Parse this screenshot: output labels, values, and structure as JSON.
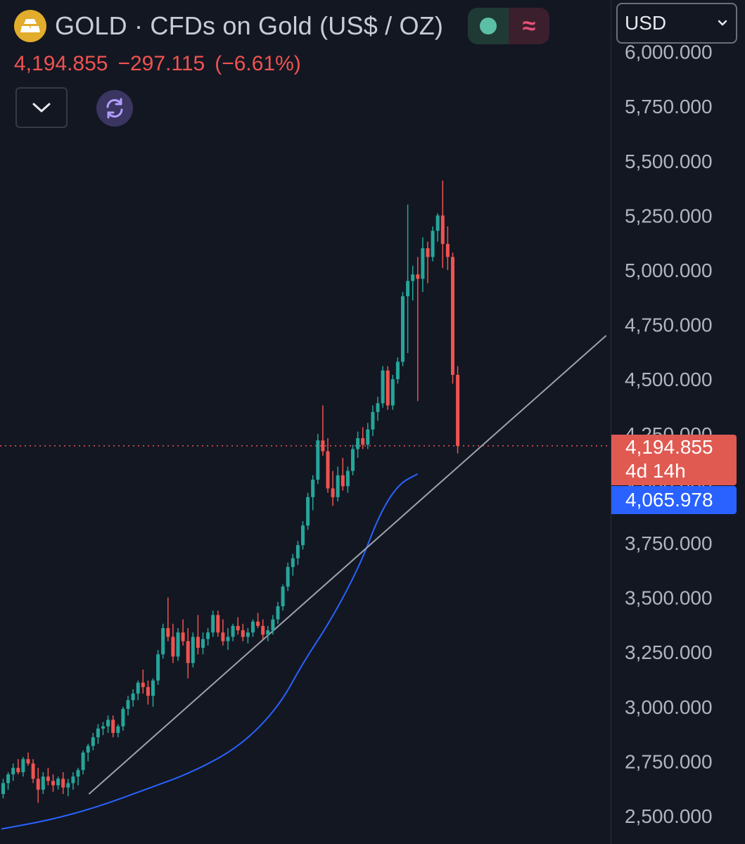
{
  "header": {
    "title": "GOLD · CFDs on Gold (US$ / OZ)",
    "last_price": "4,194.855",
    "change": "−297.115",
    "change_pct": "(−6.61%)"
  },
  "currency_select": {
    "value": "USD"
  },
  "price_tags": {
    "last_price": "4,194.855",
    "countdown": "4d 14h",
    "moving_average": "4,065.978"
  },
  "colors": {
    "background": "#131722",
    "up": "#26a69a",
    "down": "#ef5350",
    "moving_average": "#2962ff",
    "trendline": "#9ea2ab",
    "axis_text": "#b2b5be"
  },
  "icons": {
    "logo": "gold-bars-icon",
    "collapse": "chevron-down-icon",
    "refresh": "refresh-icon",
    "select_arrow": "chevron-down-icon"
  },
  "chart_data": {
    "type": "candlestick",
    "title": "GOLD · CFDs on Gold (US$ / OZ)",
    "ylim": [
      2450,
      6000
    ],
    "y_ticks": [
      2500,
      2750,
      3000,
      3250,
      3500,
      3750,
      4000,
      4250,
      4500,
      4750,
      5000,
      5250,
      5500,
      5750,
      6000
    ],
    "y_tick_labels": [
      "2,500.000",
      "2,750.000",
      "3,000.000",
      "3,250.000",
      "3,500.000",
      "3,750.000",
      "4,000.000",
      "4,250.000",
      "4,500.000",
      "4,750.000",
      "5,000.000",
      "5,250.000",
      "5,500.000",
      "5,750.000",
      "6,000.000"
    ],
    "last_price": 4194.855,
    "moving_average_last": 4065.978,
    "ohlc": [
      [
        2600,
        2670,
        2580,
        2650
      ],
      [
        2650,
        2700,
        2620,
        2690
      ],
      [
        2690,
        2740,
        2660,
        2720
      ],
      [
        2720,
        2760,
        2690,
        2700
      ],
      [
        2700,
        2770,
        2680,
        2760
      ],
      [
        2760,
        2790,
        2730,
        2740
      ],
      [
        2740,
        2760,
        2650,
        2670
      ],
      [
        2670,
        2720,
        2560,
        2620
      ],
      [
        2620,
        2700,
        2600,
        2680
      ],
      [
        2680,
        2720,
        2640,
        2660
      ],
      [
        2660,
        2690,
        2610,
        2640
      ],
      [
        2640,
        2680,
        2620,
        2670
      ],
      [
        2670,
        2700,
        2600,
        2630
      ],
      [
        2630,
        2670,
        2590,
        2650
      ],
      [
        2650,
        2700,
        2620,
        2680
      ],
      [
        2680,
        2720,
        2640,
        2710
      ],
      [
        2710,
        2800,
        2690,
        2790
      ],
      [
        2790,
        2830,
        2750,
        2820
      ],
      [
        2820,
        2880,
        2800,
        2860
      ],
      [
        2860,
        2920,
        2830,
        2900
      ],
      [
        2900,
        2930,
        2870,
        2910
      ],
      [
        2910,
        2960,
        2880,
        2940
      ],
      [
        2940,
        2960,
        2860,
        2880
      ],
      [
        2880,
        2920,
        2860,
        2910
      ],
      [
        2910,
        3000,
        2890,
        2990
      ],
      [
        2990,
        3050,
        2960,
        3030
      ],
      [
        3030,
        3080,
        3000,
        3060
      ],
      [
        3060,
        3120,
        3030,
        3110
      ],
      [
        3110,
        3170,
        3060,
        3090
      ],
      [
        3090,
        3120,
        3010,
        3050
      ],
      [
        3050,
        3130,
        3000,
        3120
      ],
      [
        3120,
        3260,
        3100,
        3240
      ],
      [
        3240,
        3380,
        3220,
        3360
      ],
      [
        3360,
        3500,
        3300,
        3320
      ],
      [
        3320,
        3380,
        3200,
        3230
      ],
      [
        3230,
        3360,
        3210,
        3340
      ],
      [
        3340,
        3400,
        3280,
        3300
      ],
      [
        3300,
        3360,
        3130,
        3200
      ],
      [
        3200,
        3340,
        3180,
        3320
      ],
      [
        3320,
        3420,
        3240,
        3270
      ],
      [
        3270,
        3340,
        3240,
        3310
      ],
      [
        3310,
        3360,
        3280,
        3340
      ],
      [
        3340,
        3440,
        3320,
        3420
      ],
      [
        3420,
        3440,
        3320,
        3340
      ],
      [
        3340,
        3400,
        3280,
        3300
      ],
      [
        3300,
        3360,
        3260,
        3320
      ],
      [
        3320,
        3380,
        3300,
        3370
      ],
      [
        3370,
        3410,
        3330,
        3350
      ],
      [
        3350,
        3380,
        3300,
        3320
      ],
      [
        3320,
        3360,
        3290,
        3340
      ],
      [
        3340,
        3400,
        3320,
        3390
      ],
      [
        3390,
        3430,
        3360,
        3370
      ],
      [
        3370,
        3400,
        3310,
        3330
      ],
      [
        3330,
        3370,
        3300,
        3350
      ],
      [
        3350,
        3420,
        3330,
        3400
      ],
      [
        3400,
        3480,
        3380,
        3460
      ],
      [
        3460,
        3560,
        3440,
        3550
      ],
      [
        3550,
        3660,
        3530,
        3640
      ],
      [
        3640,
        3700,
        3600,
        3680
      ],
      [
        3680,
        3760,
        3650,
        3740
      ],
      [
        3740,
        3850,
        3720,
        3830
      ],
      [
        3830,
        3980,
        3810,
        3960
      ],
      [
        3960,
        4060,
        3900,
        4040
      ],
      [
        4040,
        4250,
        4020,
        4220
      ],
      [
        4220,
        4380,
        4150,
        4170
      ],
      [
        4170,
        4230,
        3980,
        4000
      ],
      [
        4000,
        4080,
        3920,
        3960
      ],
      [
        3960,
        4100,
        3940,
        4060
      ],
      [
        4060,
        4140,
        3990,
        4010
      ],
      [
        4010,
        4100,
        3980,
        4080
      ],
      [
        4080,
        4200,
        4060,
        4180
      ],
      [
        4180,
        4260,
        4140,
        4230
      ],
      [
        4230,
        4280,
        4180,
        4200
      ],
      [
        4200,
        4300,
        4180,
        4270
      ],
      [
        4270,
        4380,
        4240,
        4350
      ],
      [
        4350,
        4420,
        4310,
        4390
      ],
      [
        4390,
        4560,
        4370,
        4540
      ],
      [
        4540,
        4560,
        4360,
        4380
      ],
      [
        4380,
        4520,
        4360,
        4500
      ],
      [
        4500,
        4600,
        4480,
        4580
      ],
      [
        4580,
        4900,
        4560,
        4880
      ],
      [
        4880,
        5300,
        4620,
        4950
      ],
      [
        4950,
        5020,
        4860,
        4980
      ],
      [
        4980,
        5060,
        4400,
        4960
      ],
      [
        4960,
        5150,
        4900,
        5100
      ],
      [
        5100,
        5130,
        4940,
        5060
      ],
      [
        5060,
        5200,
        5040,
        5180
      ],
      [
        5180,
        5260,
        5130,
        5250
      ],
      [
        5250,
        5410,
        5010,
        5120
      ],
      [
        5120,
        5200,
        5000,
        5060
      ],
      [
        5060,
        5080,
        4480,
        4520
      ],
      [
        4520,
        4560,
        4160,
        4194.855
      ]
    ],
    "moving_average": [
      [
        0,
        2440
      ],
      [
        10,
        2480
      ],
      [
        20,
        2540
      ],
      [
        30,
        2620
      ],
      [
        40,
        2700
      ],
      [
        50,
        2820
      ],
      [
        58,
        3000
      ],
      [
        63,
        3200
      ],
      [
        69,
        3400
      ],
      [
        75,
        3650
      ],
      [
        79,
        3880
      ],
      [
        83,
        4020
      ],
      [
        87,
        4065.978
      ]
    ],
    "trendline": {
      "from": [
        8,
        2600
      ],
      "to": [
        112,
        4700
      ]
    }
  }
}
